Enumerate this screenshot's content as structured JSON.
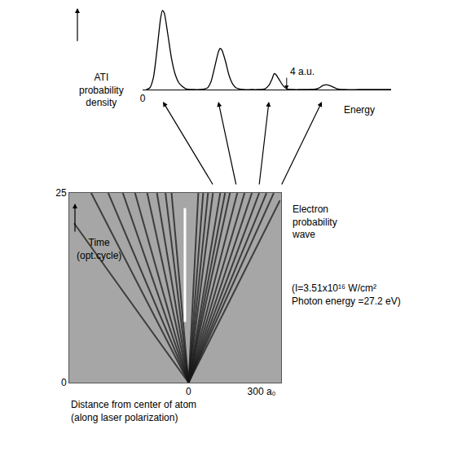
{
  "chart_data": [
    {
      "type": "line",
      "ylabel": "ATI\nprobability\ndensity",
      "xlabel": "Energy",
      "x": [
        0.1,
        0.2,
        0.3,
        0.4,
        0.5,
        0.55,
        0.6,
        0.7,
        0.8,
        0.9,
        1.0,
        1.1,
        1.2,
        1.4,
        1.6,
        1.8,
        1.9,
        2.0,
        2.1,
        2.15,
        2.2,
        2.3,
        2.4,
        2.5,
        2.6,
        2.8,
        3.0,
        3.2,
        3.4,
        3.5,
        3.6,
        3.65,
        3.7,
        3.8,
        3.9,
        4.0,
        4.2,
        4.4,
        4.6,
        4.8,
        4.9,
        5.0,
        5.1,
        5.2,
        5.3,
        5.4,
        5.6,
        6.0,
        6.5,
        6.9
      ],
      "values": [
        0,
        0.02,
        0.15,
        0.5,
        0.9,
        1.0,
        0.97,
        0.7,
        0.4,
        0.2,
        0.09,
        0.04,
        0.01,
        0,
        0,
        0.02,
        0.1,
        0.28,
        0.47,
        0.52,
        0.5,
        0.36,
        0.18,
        0.07,
        0.02,
        0,
        0,
        0,
        0.01,
        0.05,
        0.14,
        0.2,
        0.19,
        0.12,
        0.05,
        0.01,
        0,
        0,
        0,
        0.005,
        0.02,
        0.05,
        0.06,
        0.05,
        0.03,
        0.01,
        0,
        0,
        0,
        0
      ],
      "color": "#000000",
      "xlim": [
        0,
        6.9
      ],
      "xticks": [
        0
      ],
      "ylim": [
        0,
        1.05
      ],
      "tick_labels": "x",
      "annotations": [
        {
          "x": 4,
          "text": "4 a.u."
        }
      ]
    },
    {
      "type": "line",
      "ylabel": "Time\n(opt.cycle)",
      "xlabel": "Distance from center of atom\n(along laser polarization)",
      "xlim": [
        -490,
        380
      ],
      "xticks": [
        0,
        {
          "value": 300,
          "label": "300 a₀"
        }
      ],
      "ylim": [
        0,
        25
      ],
      "yticks": [
        0,
        25
      ],
      "color": "#1a1a1a",
      "series": [
        {
          "x": [
            0,
            -470
          ],
          "values": [
            0,
            21
          ]
        },
        {
          "x": [
            0,
            -400
          ],
          "values": [
            0,
            25
          ]
        },
        {
          "x": [
            0,
            -330
          ],
          "values": [
            0,
            25
          ]
        },
        {
          "x": [
            0,
            -270
          ],
          "values": [
            0,
            25
          ]
        },
        {
          "x": [
            0,
            -220
          ],
          "values": [
            0,
            25
          ]
        },
        {
          "x": [
            0,
            -170
          ],
          "values": [
            0,
            25
          ]
        },
        {
          "x": [
            0,
            -130
          ],
          "values": [
            0,
            25
          ]
        },
        {
          "x": [
            0,
            -95
          ],
          "values": [
            0,
            25
          ]
        },
        {
          "x": [
            0,
            -70
          ],
          "values": [
            0,
            25
          ]
        },
        {
          "x": [
            0,
            40
          ],
          "values": [
            0,
            25
          ]
        },
        {
          "x": [
            0,
            60
          ],
          "values": [
            0,
            25
          ]
        },
        {
          "x": [
            0,
            80
          ],
          "values": [
            0,
            25
          ]
        },
        {
          "x": [
            0,
            100
          ],
          "values": [
            0,
            25
          ]
        },
        {
          "x": [
            0,
            130
          ],
          "values": [
            0,
            25
          ]
        },
        {
          "x": [
            0,
            150
          ],
          "values": [
            0,
            25
          ]
        },
        {
          "x": [
            0,
            170
          ],
          "values": [
            0,
            25
          ]
        },
        {
          "x": [
            0,
            200
          ],
          "values": [
            0,
            25
          ]
        },
        {
          "x": [
            0,
            230
          ],
          "values": [
            0,
            25
          ]
        },
        {
          "x": [
            0,
            260
          ],
          "values": [
            0,
            25
          ]
        },
        {
          "x": [
            0,
            290
          ],
          "values": [
            0,
            25
          ]
        },
        {
          "x": [
            0,
            320
          ],
          "values": [
            0,
            25
          ]
        },
        {
          "x": [
            0,
            350
          ],
          "values": [
            0,
            25
          ]
        },
        {
          "x": [
            0,
            375
          ],
          "values": [
            0,
            24
          ]
        },
        {
          "x": [
            -15,
            -15
          ],
          "values": [
            8,
            23
          ],
          "color": "#ffffff"
        }
      ],
      "notes": [
        "Electron\nprobability\nwave",
        "(I=3.51x10¹⁶ W/cm²\nPhoton energy =27.2 eV)"
      ]
    }
  ]
}
